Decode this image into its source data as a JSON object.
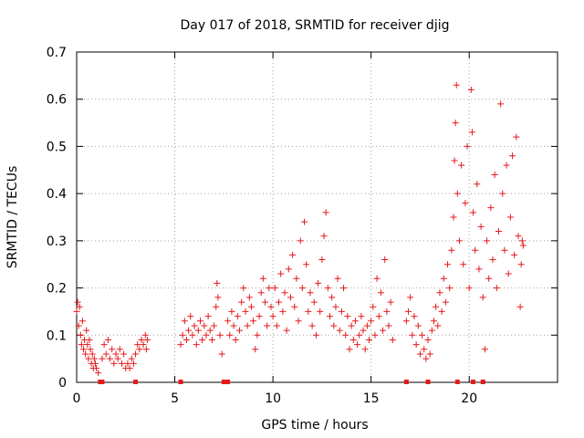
{
  "chart_data": {
    "type": "scatter",
    "title": "Day 017 of 2018, SRMTID for receiver djig",
    "xlabel": "GPS time / hours",
    "ylabel": "SRMTID / TECUs",
    "xlim": [
      0,
      24.5
    ],
    "ylim": [
      0,
      0.7
    ],
    "x_ticks": [
      0,
      5,
      10,
      15,
      20
    ],
    "y_ticks": [
      0,
      0.1,
      0.2,
      0.3,
      0.4,
      0.5,
      0.6,
      0.7
    ],
    "x_tick_labels": [
      "0",
      "5",
      "10",
      "15",
      "20"
    ],
    "y_tick_labels": [
      "0",
      "0.1",
      "0.2",
      "0.3",
      "0.4",
      "0.5",
      "0.6",
      "0.7"
    ],
    "grid": true,
    "marker": "+",
    "color": "#e41a1c",
    "series": [
      {
        "name": "SRMTID",
        "points": [
          [
            0.0,
            0.15
          ],
          [
            0.05,
            0.17
          ],
          [
            0.1,
            0.12
          ],
          [
            0.15,
            0.16
          ],
          [
            0.2,
            0.1
          ],
          [
            0.25,
            0.08
          ],
          [
            0.3,
            0.13
          ],
          [
            0.35,
            0.07
          ],
          [
            0.4,
            0.09
          ],
          [
            0.45,
            0.06
          ],
          [
            0.5,
            0.11
          ],
          [
            0.55,
            0.08
          ],
          [
            0.6,
            0.05
          ],
          [
            0.65,
            0.09
          ],
          [
            0.7,
            0.07
          ],
          [
            0.75,
            0.04
          ],
          [
            0.8,
            0.06
          ],
          [
            0.85,
            0.03
          ],
          [
            0.9,
            0.05
          ],
          [
            0.95,
            0.04
          ],
          [
            1.0,
            0.03
          ],
          [
            1.1,
            0.02
          ],
          [
            1.3,
            0.05
          ],
          [
            1.4,
            0.08
          ],
          [
            1.5,
            0.06
          ],
          [
            1.6,
            0.09
          ],
          [
            1.7,
            0.05
          ],
          [
            1.8,
            0.07
          ],
          [
            1.9,
            0.04
          ],
          [
            2.0,
            0.06
          ],
          [
            2.1,
            0.05
          ],
          [
            2.2,
            0.07
          ],
          [
            2.3,
            0.04
          ],
          [
            2.4,
            0.06
          ],
          [
            2.5,
            0.03
          ],
          [
            2.6,
            0.04
          ],
          [
            2.7,
            0.03
          ],
          [
            2.8,
            0.05
          ],
          [
            2.9,
            0.04
          ],
          [
            3.0,
            0.06
          ],
          [
            3.1,
            0.08
          ],
          [
            3.2,
            0.07
          ],
          [
            3.3,
            0.09
          ],
          [
            3.4,
            0.08
          ],
          [
            3.5,
            0.1
          ],
          [
            3.55,
            0.07
          ],
          [
            3.6,
            0.09
          ],
          [
            5.3,
            0.08
          ],
          [
            5.4,
            0.1
          ],
          [
            5.5,
            0.13
          ],
          [
            5.6,
            0.09
          ],
          [
            5.7,
            0.11
          ],
          [
            5.8,
            0.14
          ],
          [
            5.9,
            0.1
          ],
          [
            6.0,
            0.12
          ],
          [
            6.1,
            0.08
          ],
          [
            6.2,
            0.11
          ],
          [
            6.3,
            0.13
          ],
          [
            6.4,
            0.09
          ],
          [
            6.5,
            0.12
          ],
          [
            6.6,
            0.1
          ],
          [
            6.7,
            0.14
          ],
          [
            6.8,
            0.11
          ],
          [
            6.9,
            0.09
          ],
          [
            7.0,
            0.12
          ],
          [
            7.1,
            0.16
          ],
          [
            7.15,
            0.21
          ],
          [
            7.2,
            0.18
          ],
          [
            7.3,
            0.1
          ],
          [
            7.4,
            0.06
          ],
          [
            7.7,
            0.13
          ],
          [
            7.8,
            0.1
          ],
          [
            7.9,
            0.15
          ],
          [
            8.0,
            0.12
          ],
          [
            8.1,
            0.09
          ],
          [
            8.2,
            0.14
          ],
          [
            8.3,
            0.11
          ],
          [
            8.4,
            0.17
          ],
          [
            8.5,
            0.2
          ],
          [
            8.6,
            0.15
          ],
          [
            8.7,
            0.12
          ],
          [
            8.8,
            0.18
          ],
          [
            8.9,
            0.16
          ],
          [
            9.0,
            0.13
          ],
          [
            9.1,
            0.07
          ],
          [
            9.2,
            0.1
          ],
          [
            9.3,
            0.14
          ],
          [
            9.4,
            0.19
          ],
          [
            9.5,
            0.22
          ],
          [
            9.6,
            0.17
          ],
          [
            9.7,
            0.12
          ],
          [
            9.8,
            0.2
          ],
          [
            9.9,
            0.16
          ],
          [
            10.0,
            0.14
          ],
          [
            10.1,
            0.2
          ],
          [
            10.2,
            0.12
          ],
          [
            10.3,
            0.17
          ],
          [
            10.4,
            0.23
          ],
          [
            10.5,
            0.15
          ],
          [
            10.6,
            0.19
          ],
          [
            10.7,
            0.11
          ],
          [
            10.8,
            0.24
          ],
          [
            10.9,
            0.18
          ],
          [
            11.0,
            0.27
          ],
          [
            11.1,
            0.16
          ],
          [
            11.2,
            0.22
          ],
          [
            11.3,
            0.13
          ],
          [
            11.4,
            0.3
          ],
          [
            11.5,
            0.2
          ],
          [
            11.6,
            0.34
          ],
          [
            11.7,
            0.25
          ],
          [
            11.8,
            0.15
          ],
          [
            11.9,
            0.19
          ],
          [
            12.0,
            0.12
          ],
          [
            12.1,
            0.17
          ],
          [
            12.2,
            0.1
          ],
          [
            12.3,
            0.21
          ],
          [
            12.4,
            0.15
          ],
          [
            12.5,
            0.26
          ],
          [
            12.6,
            0.31
          ],
          [
            12.7,
            0.36
          ],
          [
            12.8,
            0.2
          ],
          [
            12.9,
            0.14
          ],
          [
            13.0,
            0.18
          ],
          [
            13.1,
            0.12
          ],
          [
            13.2,
            0.16
          ],
          [
            13.3,
            0.22
          ],
          [
            13.4,
            0.11
          ],
          [
            13.5,
            0.15
          ],
          [
            13.6,
            0.2
          ],
          [
            13.7,
            0.1
          ],
          [
            13.8,
            0.14
          ],
          [
            13.9,
            0.07
          ],
          [
            14.0,
            0.12
          ],
          [
            14.1,
            0.09
          ],
          [
            14.2,
            0.13
          ],
          [
            14.3,
            0.08
          ],
          [
            14.4,
            0.1
          ],
          [
            14.5,
            0.14
          ],
          [
            14.6,
            0.11
          ],
          [
            14.7,
            0.07
          ],
          [
            14.8,
            0.12
          ],
          [
            14.9,
            0.09
          ],
          [
            15.0,
            0.13
          ],
          [
            15.1,
            0.16
          ],
          [
            15.2,
            0.1
          ],
          [
            15.3,
            0.22
          ],
          [
            15.4,
            0.14
          ],
          [
            15.5,
            0.19
          ],
          [
            15.6,
            0.11
          ],
          [
            15.7,
            0.26
          ],
          [
            15.8,
            0.15
          ],
          [
            15.9,
            0.12
          ],
          [
            16.0,
            0.17
          ],
          [
            16.1,
            0.09
          ],
          [
            16.8,
            0.13
          ],
          [
            16.9,
            0.15
          ],
          [
            17.0,
            0.18
          ],
          [
            17.1,
            0.1
          ],
          [
            17.2,
            0.14
          ],
          [
            17.3,
            0.08
          ],
          [
            17.4,
            0.12
          ],
          [
            17.5,
            0.06
          ],
          [
            17.6,
            0.1
          ],
          [
            17.7,
            0.07
          ],
          [
            17.8,
            0.05
          ],
          [
            17.9,
            0.09
          ],
          [
            18.0,
            0.06
          ],
          [
            18.1,
            0.11
          ],
          [
            18.2,
            0.13
          ],
          [
            18.3,
            0.16
          ],
          [
            18.4,
            0.12
          ],
          [
            18.5,
            0.19
          ],
          [
            18.6,
            0.15
          ],
          [
            18.7,
            0.22
          ],
          [
            18.8,
            0.17
          ],
          [
            18.9,
            0.25
          ],
          [
            19.0,
            0.2
          ],
          [
            19.1,
            0.28
          ],
          [
            19.2,
            0.35
          ],
          [
            19.25,
            0.47
          ],
          [
            19.3,
            0.55
          ],
          [
            19.35,
            0.63
          ],
          [
            19.4,
            0.4
          ],
          [
            19.5,
            0.3
          ],
          [
            19.6,
            0.46
          ],
          [
            19.7,
            0.25
          ],
          [
            19.8,
            0.38
          ],
          [
            19.9,
            0.5
          ],
          [
            20.0,
            0.2
          ],
          [
            20.1,
            0.62
          ],
          [
            20.15,
            0.53
          ],
          [
            20.2,
            0.36
          ],
          [
            20.3,
            0.28
          ],
          [
            20.4,
            0.42
          ],
          [
            20.5,
            0.24
          ],
          [
            20.6,
            0.33
          ],
          [
            20.7,
            0.18
          ],
          [
            20.8,
            0.07
          ],
          [
            20.9,
            0.3
          ],
          [
            21.0,
            0.22
          ],
          [
            21.1,
            0.37
          ],
          [
            21.2,
            0.26
          ],
          [
            21.3,
            0.44
          ],
          [
            21.4,
            0.2
          ],
          [
            21.5,
            0.32
          ],
          [
            21.6,
            0.59
          ],
          [
            21.7,
            0.4
          ],
          [
            21.8,
            0.28
          ],
          [
            21.9,
            0.46
          ],
          [
            22.0,
            0.23
          ],
          [
            22.1,
            0.35
          ],
          [
            22.2,
            0.48
          ],
          [
            22.3,
            0.27
          ],
          [
            22.4,
            0.52
          ],
          [
            22.5,
            0.31
          ],
          [
            22.6,
            0.16
          ],
          [
            22.65,
            0.25
          ],
          [
            22.7,
            0.3
          ],
          [
            22.75,
            0.29
          ]
        ]
      }
    ],
    "axis_markers": [
      1.2,
      1.3,
      3.0,
      5.3,
      7.5,
      7.6,
      7.7,
      16.8,
      17.9,
      19.4,
      20.2,
      20.7
    ]
  }
}
